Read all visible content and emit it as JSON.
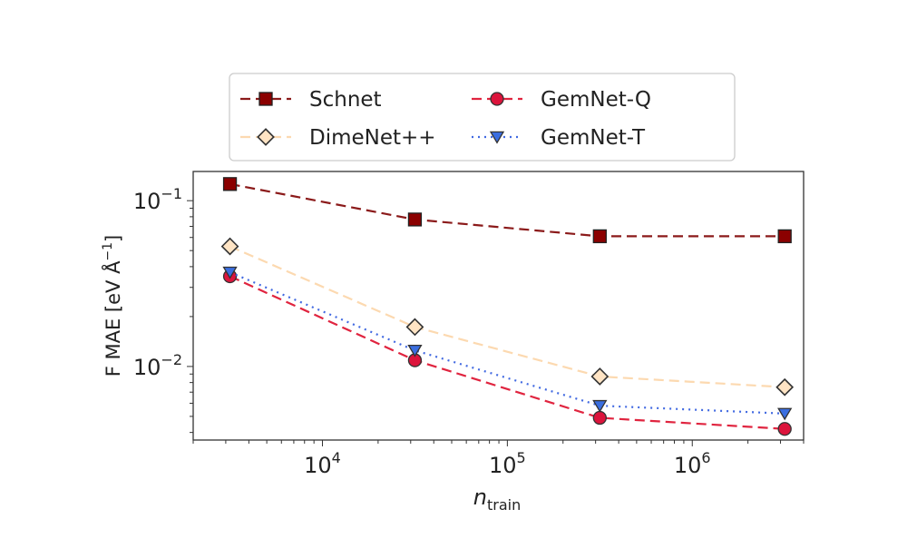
{
  "chart_data": {
    "type": "line",
    "title": "",
    "xlabel": "n",
    "xlabel_sub": "train",
    "ylabel": "F MAE [eV Å",
    "ylabel_sup": "−1",
    "ylabel_close": "]",
    "xscale": "log",
    "yscale": "log",
    "xlim": [
      2000,
      4000000
    ],
    "ylim": [
      0.0036,
      0.15
    ],
    "grid": false,
    "legend_placement": "top (above plot)",
    "x_ticks": [
      {
        "value": 10000,
        "base": "10",
        "exp": "4"
      },
      {
        "value": 100000,
        "base": "10",
        "exp": "5"
      },
      {
        "value": 1000000,
        "base": "10",
        "exp": "6"
      }
    ],
    "y_ticks": [
      {
        "value": 0.1,
        "base": "10",
        "exp": "−1"
      },
      {
        "value": 0.01,
        "base": "10",
        "exp": "−2"
      }
    ],
    "x": [
      3162,
      31623,
      316228,
      3162278
    ],
    "series": [
      {
        "name": "Schnet",
        "values": [
          0.126,
          0.077,
          0.061,
          0.061
        ],
        "color": "#8b0000",
        "line_color": "#8b1a1a",
        "marker": "square",
        "linestyle": "dashed"
      },
      {
        "name": "DimeNet++",
        "values": [
          0.053,
          0.0173,
          0.0087,
          0.0075
        ],
        "color": "#ffe4c4",
        "line_color": "#fcd9b0",
        "marker": "diamond",
        "linestyle": "dashed"
      },
      {
        "name": "GemNet-Q",
        "values": [
          0.035,
          0.0109,
          0.0049,
          0.0042
        ],
        "color": "#dc143c",
        "line_color": "#e0243f",
        "marker": "circle",
        "linestyle": "dashed"
      },
      {
        "name": "GemNet-T",
        "values": [
          0.037,
          0.0125,
          0.0058,
          0.0052
        ],
        "color": "#3a6ee0",
        "line_color": "#4169e1",
        "marker": "triangle-down",
        "linestyle": "dotted"
      }
    ]
  }
}
